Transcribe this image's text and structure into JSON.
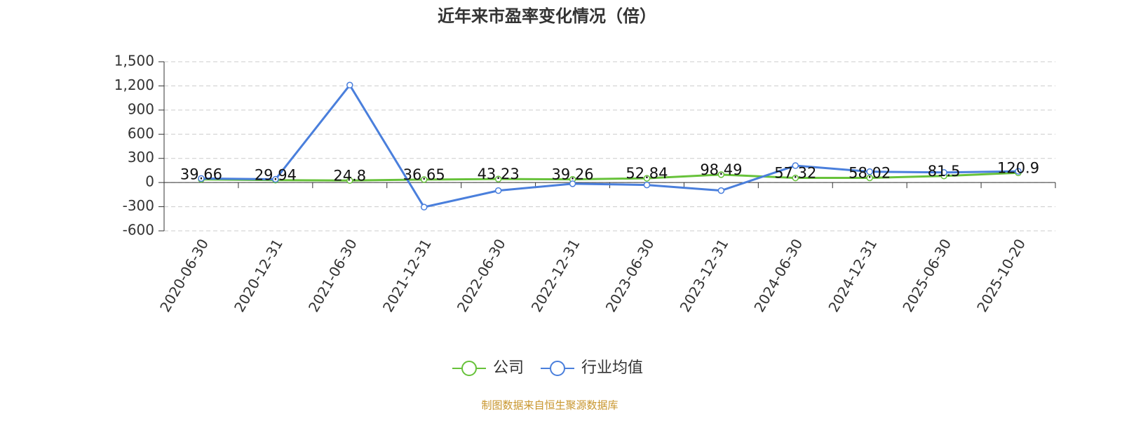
{
  "chart_data": {
    "type": "line",
    "title": "近年来市盈率变化情况（倍）",
    "source": "制图数据来自恒生聚源数据库",
    "categories": [
      "2020-06-30",
      "2020-12-31",
      "2021-06-30",
      "2021-12-31",
      "2022-06-30",
      "2022-12-31",
      "2023-06-30",
      "2023-12-31",
      "2024-06-30",
      "2024-12-31",
      "2025-06-30",
      "2025-10-20"
    ],
    "series": [
      {
        "name": "公司",
        "color": "#67c23a",
        "values": [
          39.66,
          29.94,
          24.8,
          36.65,
          43.23,
          39.26,
          52.84,
          98.49,
          57.32,
          58.02,
          81.5,
          120.9
        ],
        "show_labels": true
      },
      {
        "name": "行业均值",
        "color": "#4a7fdc",
        "values": [
          50,
          40,
          1210,
          -305,
          -100,
          -15,
          -30,
          -100,
          210,
          135,
          125,
          140
        ],
        "show_labels": false
      }
    ],
    "ylim": [
      -600,
      1500
    ],
    "yticks": [
      {
        "value": 1500,
        "label": "1,500"
      },
      {
        "value": 1200,
        "label": "1,200"
      },
      900,
      600,
      300,
      0,
      -300,
      -600
    ],
    "grid": true,
    "legend": "bottom"
  }
}
